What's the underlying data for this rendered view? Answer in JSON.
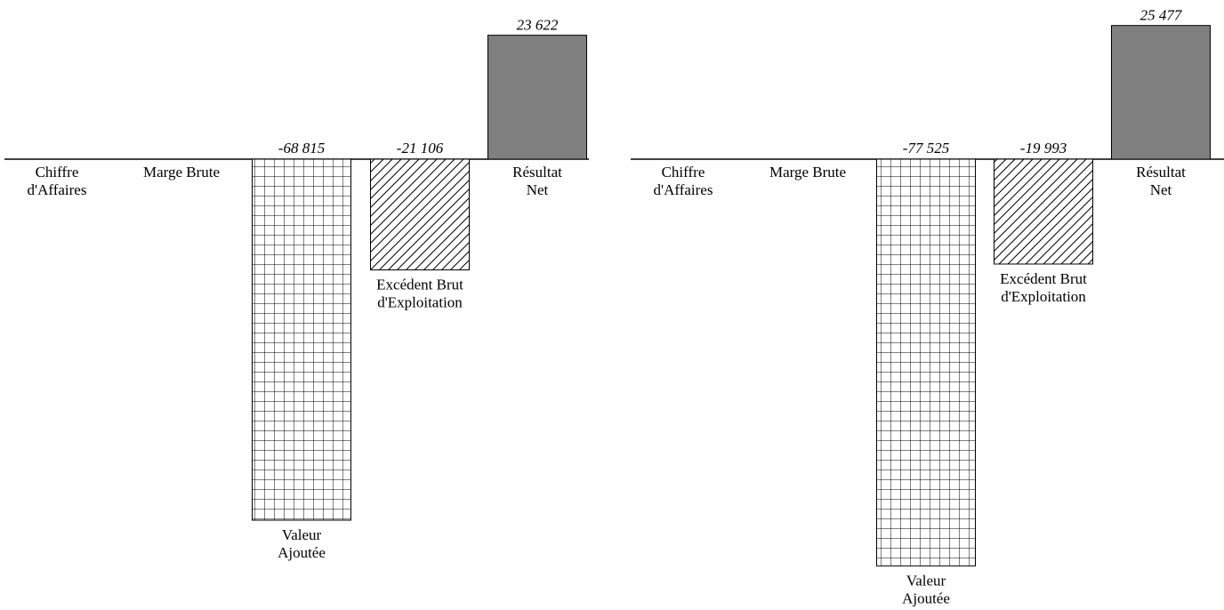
{
  "chart_data": [
    {
      "type": "bar",
      "categories": [
        [
          "Chiffre",
          "d'Affaires"
        ],
        [
          "Marge Brute"
        ],
        [
          "Valeur",
          "Ajoutée"
        ],
        [
          "Excédent Brut",
          "d'Exploitation"
        ],
        [
          "Résultat",
          "Net"
        ]
      ],
      "values": [
        null,
        null,
        -68815,
        -21106,
        23622
      ],
      "value_labels": [
        "",
        "",
        "-68 815",
        "-21 106",
        "23 622"
      ],
      "patterns": [
        "none",
        "none",
        "grid",
        "hatch",
        "solid"
      ],
      "colors": {
        "solid": "#808080",
        "stroke": "#000000"
      },
      "ylim": [
        -77525,
        25477
      ],
      "grid": false,
      "legend": "none"
    },
    {
      "type": "bar",
      "categories": [
        [
          "Chiffre",
          "d'Affaires"
        ],
        [
          "Marge Brute"
        ],
        [
          "Valeur",
          "Ajoutée"
        ],
        [
          "Excédent Brut",
          "d'Exploitation"
        ],
        [
          "Résultat",
          "Net"
        ]
      ],
      "values": [
        null,
        null,
        -77525,
        -19993,
        25477
      ],
      "value_labels": [
        "",
        "",
        "-77 525",
        "-19 993",
        "25 477"
      ],
      "patterns": [
        "none",
        "none",
        "grid",
        "hatch",
        "solid"
      ],
      "colors": {
        "solid": "#808080",
        "stroke": "#000000"
      },
      "ylim": [
        -77525,
        25477
      ],
      "grid": false,
      "legend": "none"
    }
  ]
}
